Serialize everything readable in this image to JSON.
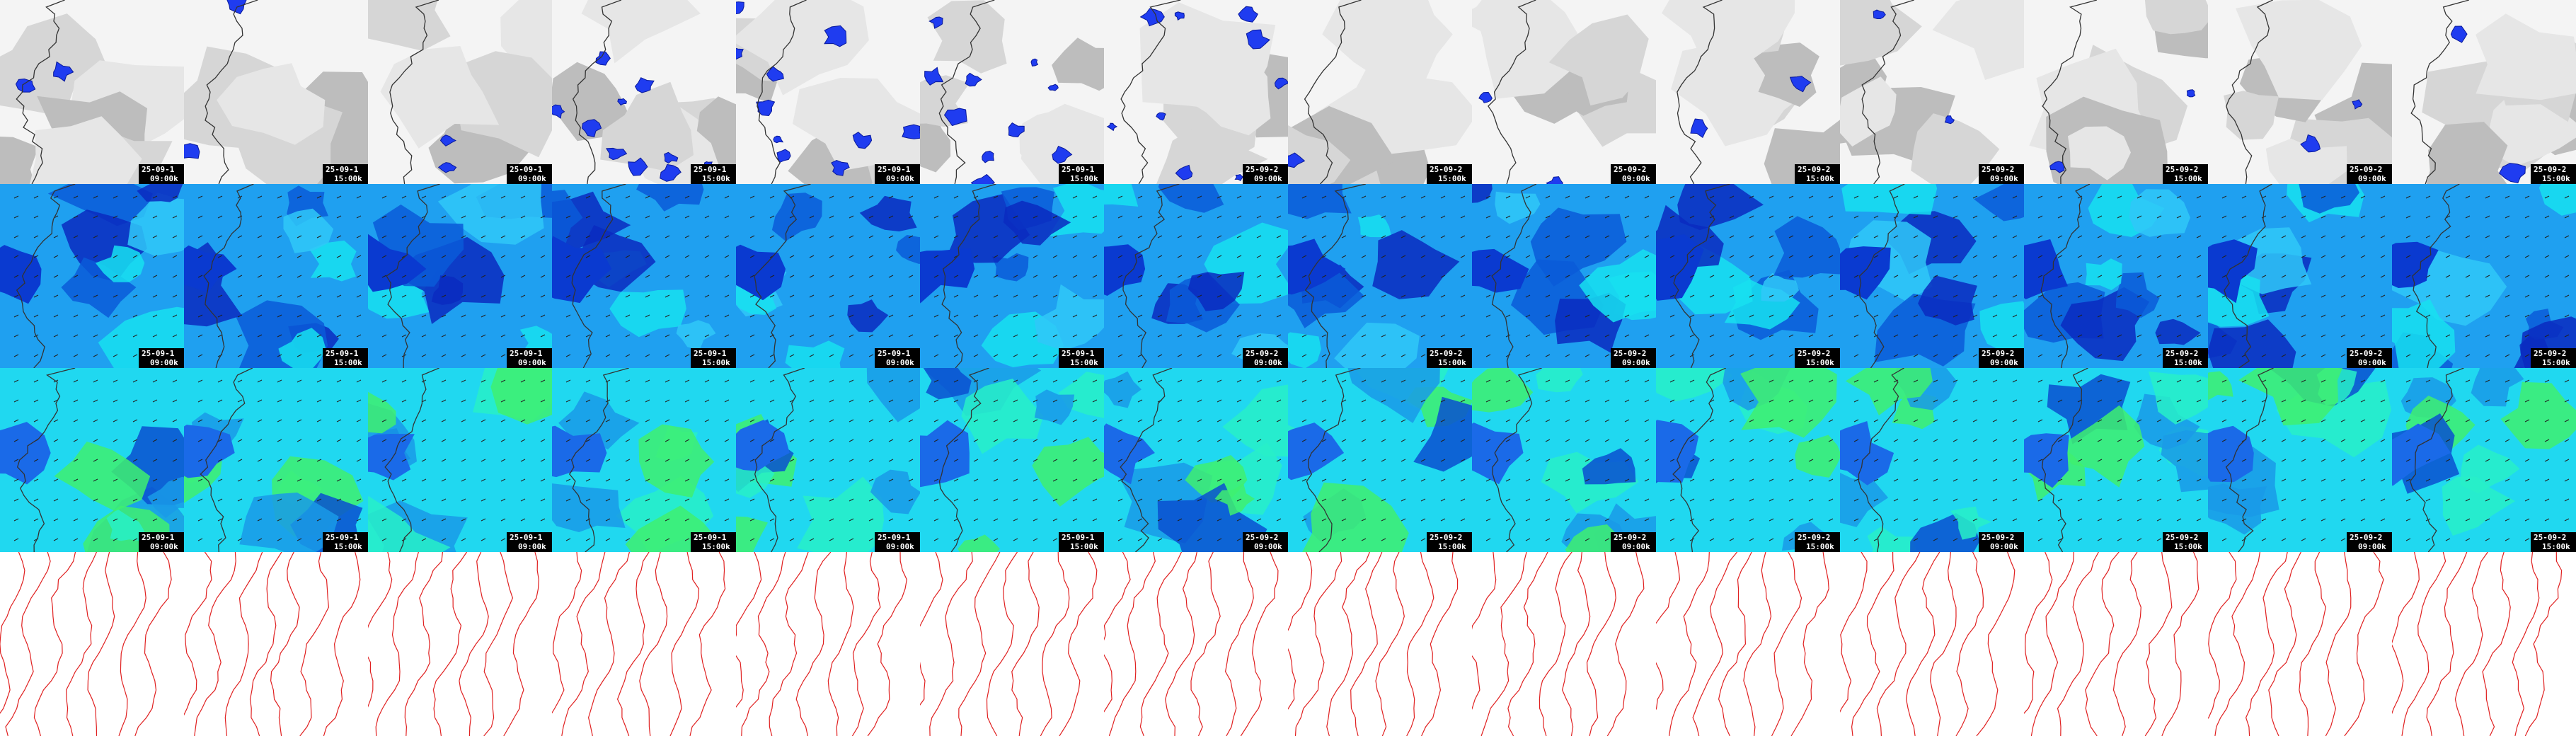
{
  "columns": [
    {
      "date": "25-09-1",
      "time": "09:00k"
    },
    {
      "date": "25-09-1",
      "time": "15:00k"
    },
    {
      "date": "25-09-1",
      "time": "09:00k"
    },
    {
      "date": "25-09-1",
      "time": "15:00k"
    },
    {
      "date": "25-09-1",
      "time": "09:00k"
    },
    {
      "date": "25-09-1",
      "time": "15:00k"
    },
    {
      "date": "25-09-2",
      "time": "09:00k"
    },
    {
      "date": "25-09-2",
      "time": "15:00k"
    },
    {
      "date": "25-09-2",
      "time": "09:00k"
    },
    {
      "date": "25-09-2",
      "time": "15:00k"
    },
    {
      "date": "25-09-2",
      "time": "09:00k"
    },
    {
      "date": "25-09-2",
      "time": "15:00k"
    },
    {
      "date": "25-09-2",
      "time": "09:00k"
    },
    {
      "date": "25-09-2",
      "time": "15:00k"
    }
  ]
}
